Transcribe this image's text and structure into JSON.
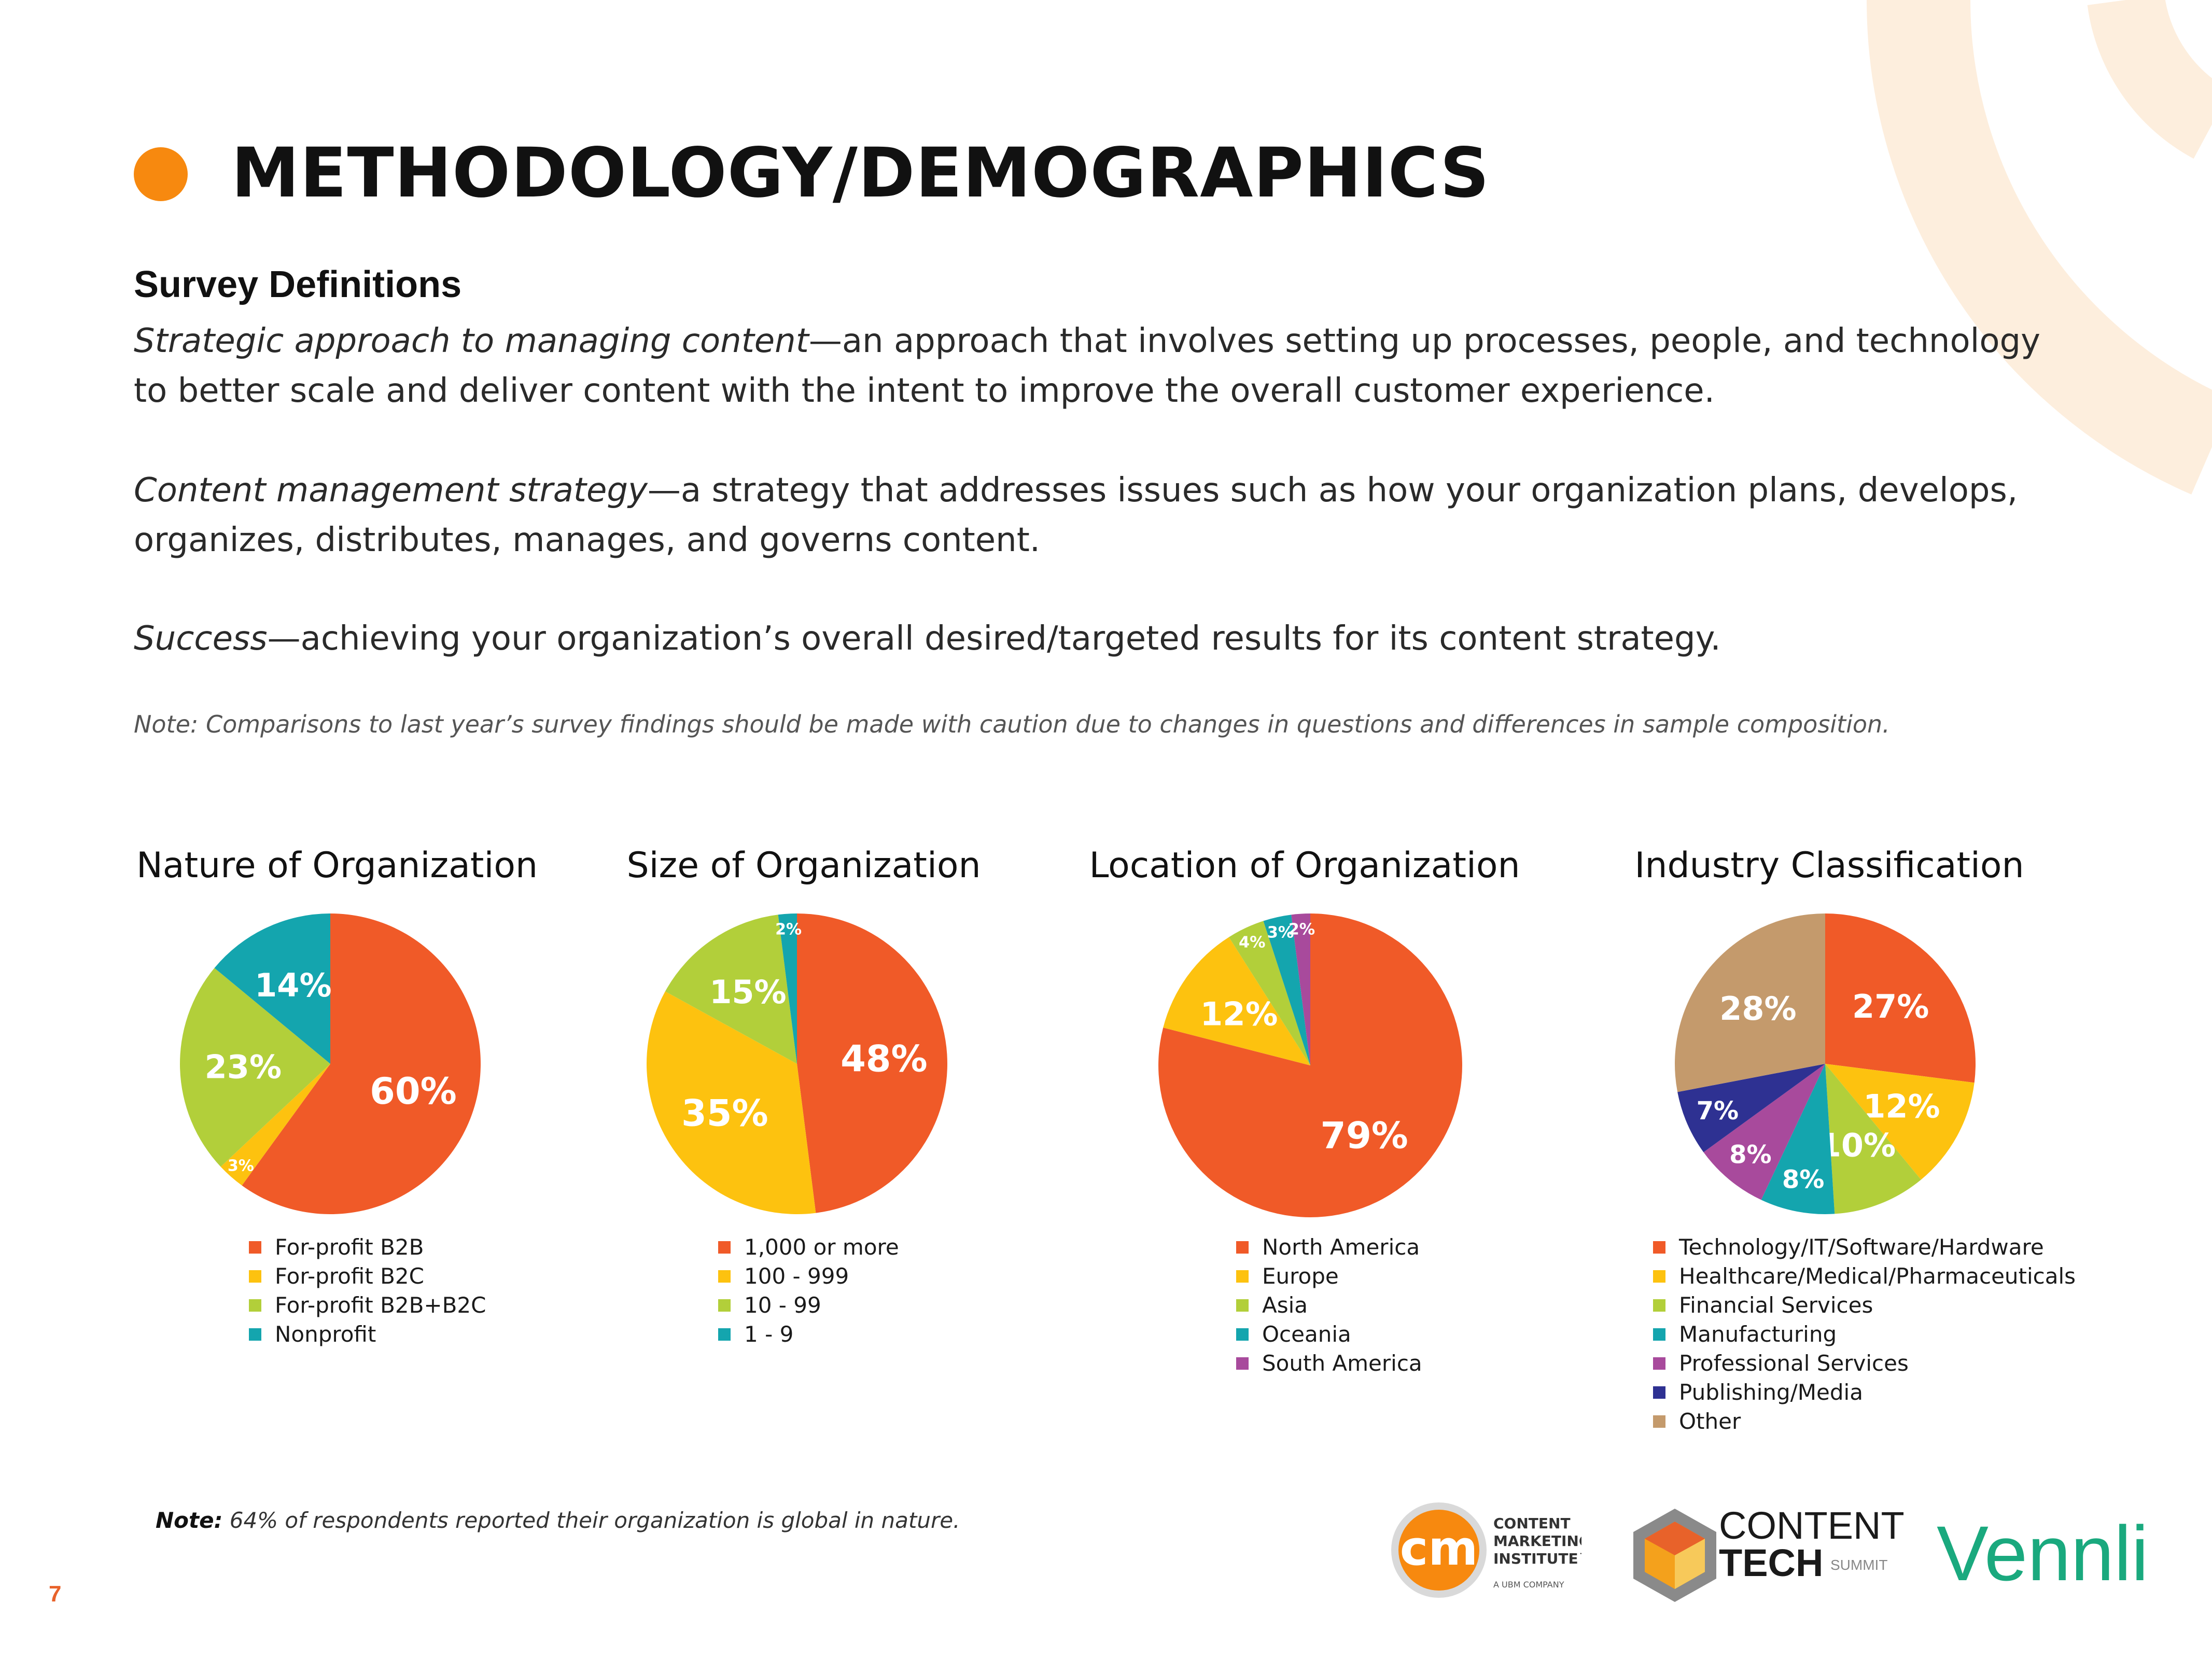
{
  "page": {
    "title": "METHODOLOGY/DEMOGRAPHICS",
    "page_number": "7",
    "accent_color": "#f7890f"
  },
  "definitions": {
    "heading": "Survey Definitions",
    "items": [
      {
        "term": "Strategic approach to managing content",
        "text": "—an approach that involves setting up processes, people, and technology to better scale and deliver content with the intent to improve the overall customer experience."
      },
      {
        "term": "Content management strategy",
        "text": "—a strategy that addresses issues such as how your organization plans, develops, organizes, distributes, manages, and governs content."
      },
      {
        "term": "Success",
        "text": "—achieving your organization’s overall desired/targeted results for its content strategy."
      }
    ],
    "note": "Note: Comparisons to last year’s survey findings should be made with caution due to changes in questions and differences in sample composition."
  },
  "chart_data": [
    {
      "type": "pie",
      "title": "Nature of Organization",
      "categories": [
        "For-profit B2B",
        "For-profit B2C",
        "For-profit B2B+B2C",
        "Nonprofit"
      ],
      "values": [
        60,
        3,
        23,
        14
      ],
      "labels": [
        "60%",
        "3%",
        "23%",
        "14%"
      ],
      "colors": [
        "#f05a28",
        "#fdc20f",
        "#b2cf3a",
        "#14a5ae"
      ],
      "legend_position": "bottom"
    },
    {
      "type": "pie",
      "title": "Size of Organization",
      "categories": [
        "1,000 or more",
        "100 - 999",
        "10 - 99",
        "1 - 9"
      ],
      "values": [
        48,
        35,
        15,
        2
      ],
      "labels": [
        "48%",
        "35%",
        "15%",
        "2%"
      ],
      "colors": [
        "#f05a28",
        "#fdc20f",
        "#b2cf3a",
        "#14a5ae"
      ],
      "legend_position": "bottom"
    },
    {
      "type": "pie",
      "title": "Location of Organization",
      "categories": [
        "North America",
        "Europe",
        "Asia",
        "Oceania",
        "South America"
      ],
      "values": [
        79,
        12,
        4,
        3,
        2
      ],
      "labels": [
        "79%",
        "12%",
        "4%",
        "3%",
        "2%"
      ],
      "colors": [
        "#f05a28",
        "#fdc20f",
        "#b2cf3a",
        "#14a5ae",
        "#a84a9c"
      ],
      "legend_position": "bottom"
    },
    {
      "type": "pie",
      "title": "Industry Classification",
      "categories": [
        "Technology/IT/Software/Hardware",
        "Healthcare/Medical/Pharmaceuticals",
        "Financial Services",
        "Manufacturing",
        "Professional Services",
        "Publishing/Media",
        "Other"
      ],
      "values": [
        27,
        12,
        10,
        8,
        8,
        7,
        28
      ],
      "labels": [
        "27%",
        "12%",
        "10%",
        "8%",
        "8%",
        "7%",
        "28%"
      ],
      "colors": [
        "#f05a28",
        "#fdc20f",
        "#b2cf3a",
        "#14a5ae",
        "#a84a9c",
        "#2e3192",
        "#c49a6c"
      ],
      "legend_position": "bottom"
    }
  ],
  "footer": {
    "note_label": "Note:",
    "note_text": " 64% of respondents reported their organization is global in nature.",
    "logos": {
      "cmi_mark": "cm",
      "cmi_name_lines": [
        "CONTENT",
        "MARKETING",
        "INSTITUTE™"
      ],
      "cmi_sub": "A UBM COMPANY",
      "ct_line1": "CONTENT",
      "ct_line2": "TECH",
      "ct_sub": "SUMMIT",
      "vennli": "Vennli"
    }
  }
}
